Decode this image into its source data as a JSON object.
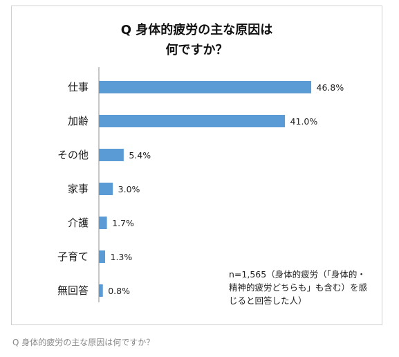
{
  "chart_data": {
    "type": "bar",
    "orientation": "horizontal",
    "title_line1": "Q 身体的疲労の主な原因は",
    "title_line2": "何ですか？",
    "categories": [
      "仕事",
      "加齢",
      "その他",
      "家事",
      "介護",
      "子育て",
      "無回答"
    ],
    "values": [
      46.8,
      41.0,
      5.4,
      3.0,
      1.7,
      1.3,
      0.8
    ],
    "value_labels": [
      "46.8%",
      "41.0%",
      "5.4%",
      "3.0%",
      "1.7%",
      "1.3%",
      "0.8%"
    ],
    "xlim": [
      0,
      50
    ],
    "grid": false,
    "legend": false,
    "bar_color": "#5b9bd5",
    "note": "n=1,565（身体的疲労（「身体的・精神的疲労どちらも」も含む）を感じると回答した人）"
  },
  "caption": "Q 身体的疲労の主な原因は何ですか？"
}
